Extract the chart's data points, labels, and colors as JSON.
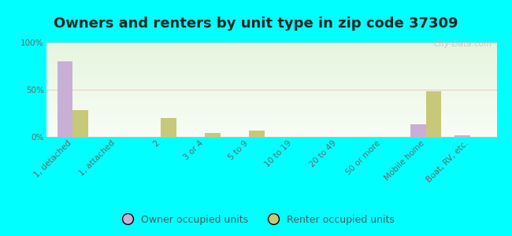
{
  "title": "Owners and renters by unit type in zip code 37309",
  "categories": [
    "1, detached",
    "1, attached",
    "2",
    "3 or 4",
    "5 to 9",
    "10 to 19",
    "20 to 49",
    "50 or more",
    "Mobile home",
    "Boat, RV, etc."
  ],
  "owner_values": [
    80,
    0,
    0,
    0,
    0,
    0,
    0,
    0,
    13,
    2
  ],
  "renter_values": [
    28,
    0,
    20,
    4,
    7,
    0,
    0,
    0,
    48,
    0
  ],
  "owner_color": "#c9aed6",
  "renter_color": "#c8c87a",
  "background_color": "#00ffff",
  "ylabel_ticks": [
    "0%",
    "50%",
    "100%"
  ],
  "ytick_vals": [
    0,
    50,
    100
  ],
  "ylim": [
    0,
    105
  ],
  "bar_width": 0.35,
  "title_fontsize": 13,
  "tick_fontsize": 7.5,
  "legend_fontsize": 9,
  "grid_color": "#e08888",
  "watermark": "City-Data.com"
}
